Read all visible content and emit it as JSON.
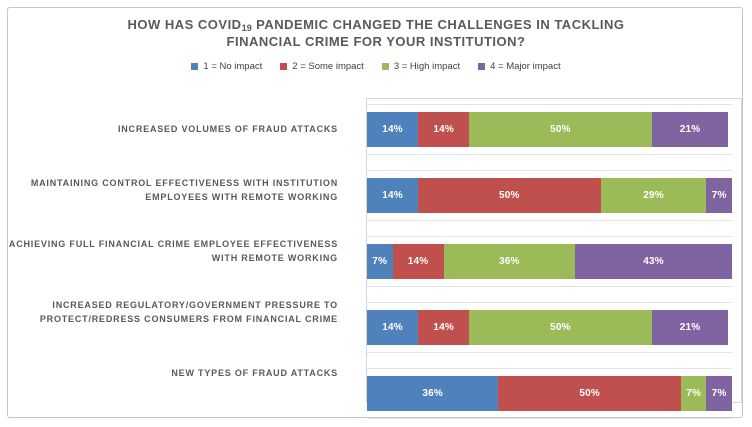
{
  "title": {
    "pre": "HOW HAS COVID",
    "sub": "19",
    "rest": " PANDEMIC CHANGED THE CHALLENGES IN TACKLING",
    "line2": "FINANCIAL CRIME FOR YOUR INSTITUTION?"
  },
  "chart_data": {
    "type": "bar",
    "orientation": "horizontal",
    "stacked": true,
    "unit": "%",
    "title": "HOW HAS COVID19 PANDEMIC CHANGED THE CHALLENGES IN TACKLING FINANCIAL CRIME FOR YOUR INSTITUTION?",
    "categories": [
      "INCREASED VOLUMES OF FRAUD ATTACKS",
      "MAINTAINING CONTROL EFFECTIVENESS WITH INSTITUTION EMPLOYEES WITH REMOTE WORKING",
      "ACHIEVING FULL FINANCIAL CRIME EMPLOYEE EFFECTIVENESS WITH REMOTE WORKING",
      "INCREASED REGULATORY/GOVERNMENT PRESSURE TO PROTECT/REDRESS CONSUMERS FROM FINANCIAL CRIME",
      "NEW TYPES OF FRAUD ATTACKS"
    ],
    "series": [
      {
        "name": "1 = No impact",
        "color": "#4F81BD",
        "values": [
          14,
          14,
          7,
          14,
          36
        ]
      },
      {
        "name": "2 = Some impact",
        "color": "#C0504D",
        "values": [
          14,
          50,
          14,
          14,
          50
        ]
      },
      {
        "name": "3 = High impact",
        "color": "#9BBB59",
        "values": [
          50,
          29,
          36,
          50,
          7
        ]
      },
      {
        "name": "4 = Major impact",
        "color": "#8064A2",
        "values": [
          21,
          7,
          43,
          21,
          7
        ]
      }
    ],
    "xlim": [
      0,
      100
    ],
    "value_labels_shown": true,
    "value_axis_visible": false,
    "legend_position": "top",
    "gridlines": "category row separators"
  },
  "colors": {
    "title_text": "#595959",
    "category_text": "#595959",
    "legend_text": "#404040",
    "data_label_text": "#ffffff",
    "plot_border": "#d5d6d7",
    "row_band_border": "#e3e4e5",
    "frame_border": "#c5c6c8",
    "background": "#ffffff"
  }
}
